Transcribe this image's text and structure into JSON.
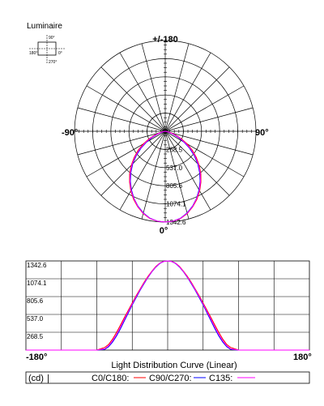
{
  "luminaire_label": "Luminaire",
  "diagram": {
    "label_0": "0°",
    "label_90": "90°",
    "label_180": "180°",
    "label_270": "270°"
  },
  "polar": {
    "top_label": "+/-180",
    "bottom_label": "0°",
    "left_label": "-90°",
    "right_label": "90°",
    "radial_ticks": [
      "268.5",
      "537.0",
      "805.6",
      "1074.1",
      "1342.6"
    ]
  },
  "linear": {
    "y_ticks": [
      "1342.6",
      "1074.1",
      "805.6",
      "537.0",
      "268.5"
    ],
    "x_min_label": "-180°",
    "x_max_label": "180°",
    "title": "Light Distribution Curve (Linear)"
  },
  "legend": {
    "unit": "(cd)",
    "sep": "|",
    "items": [
      {
        "label": "C0/C180:",
        "color": "#ff0000"
      },
      {
        "label": "C90/C270:",
        "color": "#0000ff"
      },
      {
        "label": "C135:",
        "color": "#ff00ff"
      }
    ]
  },
  "chart_data": {
    "type": "line",
    "x_unit": "degrees",
    "xlim": [
      -180,
      180
    ],
    "ylim": [
      0,
      1342.6
    ],
    "series": [
      {
        "name": "C0/C180",
        "color": "#ff0000",
        "x": [
          -180,
          -120,
          -100,
          -90,
          -80,
          -75,
          -70,
          -65,
          -60,
          -55,
          -50,
          -45,
          -40,
          -35,
          -30,
          -25,
          -20,
          -15,
          -10,
          -5,
          0,
          5,
          10,
          15,
          20,
          25,
          30,
          35,
          40,
          45,
          50,
          55,
          60,
          65,
          70,
          75,
          80,
          90,
          100,
          120,
          180
        ],
        "values": [
          0,
          0,
          0,
          0,
          40,
          85,
          165,
          265,
          375,
          490,
          600,
          710,
          820,
          920,
          1020,
          1110,
          1190,
          1260,
          1310,
          1335,
          1342,
          1335,
          1310,
          1260,
          1190,
          1110,
          1020,
          920,
          820,
          710,
          600,
          490,
          375,
          265,
          165,
          85,
          40,
          0,
          0,
          0,
          0
        ]
      },
      {
        "name": "C90/C270",
        "color": "#0000ff",
        "x": [
          -180,
          -120,
          -100,
          -90,
          -80,
          -75,
          -70,
          -65,
          -60,
          -55,
          -50,
          -45,
          -40,
          -35,
          -30,
          -25,
          -20,
          -15,
          -10,
          -5,
          0,
          5,
          10,
          15,
          20,
          25,
          30,
          35,
          40,
          45,
          50,
          55,
          60,
          65,
          70,
          75,
          80,
          90,
          100,
          120,
          180
        ],
        "values": [
          0,
          0,
          0,
          0,
          10,
          50,
          120,
          210,
          320,
          440,
          560,
          680,
          790,
          900,
          1000,
          1095,
          1180,
          1250,
          1305,
          1335,
          1342,
          1335,
          1305,
          1250,
          1180,
          1095,
          1000,
          900,
          790,
          680,
          560,
          440,
          320,
          210,
          120,
          50,
          10,
          0,
          0,
          0,
          0
        ]
      },
      {
        "name": "C135",
        "color": "#ff00ff",
        "x": [
          -180,
          -120,
          -100,
          -90,
          -80,
          -75,
          -70,
          -65,
          -60,
          -55,
          -50,
          -45,
          -40,
          -35,
          -30,
          -25,
          -20,
          -15,
          -10,
          -5,
          0,
          5,
          10,
          15,
          20,
          25,
          30,
          35,
          40,
          45,
          50,
          55,
          60,
          65,
          70,
          75,
          80,
          90,
          100,
          120,
          180
        ],
        "values": [
          0,
          0,
          0,
          0,
          20,
          65,
          140,
          235,
          345,
          465,
          580,
          695,
          805,
          910,
          1010,
          1100,
          1185,
          1255,
          1308,
          1335,
          1342,
          1335,
          1308,
          1255,
          1185,
          1100,
          1010,
          910,
          805,
          695,
          580,
          465,
          345,
          235,
          140,
          65,
          20,
          0,
          0,
          0,
          0
        ]
      }
    ]
  }
}
